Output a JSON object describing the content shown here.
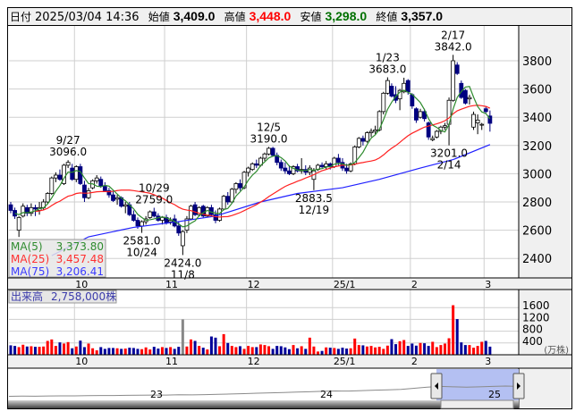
{
  "info": {
    "date_label": "日付",
    "date": "2025/03/04 14:36",
    "open_label": "始値",
    "open": "3,409.0",
    "high_label": "高値",
    "high": "3,448.0",
    "low_label": "安値",
    "low": "3,298.0",
    "close_label": "終値",
    "close": "3,357.0"
  },
  "colors": {
    "up": "#ffffff",
    "down": "#000080",
    "ma5": "#2e8b2e",
    "ma25": "#ff2020",
    "ma75": "#2020ff",
    "vol_up": "#ff0000",
    "vol_down": "#000099",
    "high": "#ff0000",
    "low": "#007000",
    "nav_select": "#b4c0f2"
  },
  "legend": [
    {
      "label": "MA(5)",
      "value": "3,373.80",
      "key": "ma5"
    },
    {
      "label": "MA(25)",
      "value": "3,457.48",
      "key": "ma25"
    },
    {
      "label": "MA(75)",
      "value": "3,206.41",
      "key": "ma75"
    }
  ],
  "volume_label": {
    "title": "出来高",
    "value": "2,758,000株"
  },
  "volume_unit": "(万株)",
  "chart_data": [
    {
      "type": "candlestick",
      "title": "",
      "yticks": [
        2400,
        2600,
        2800,
        3000,
        3200,
        3400,
        3600,
        3800
      ],
      "ylim": [
        2260,
        3900
      ],
      "grid": true,
      "month_ticks": [
        {
          "index": 16,
          "label": "10"
        },
        {
          "index": 38,
          "label": "11"
        },
        {
          "index": 58,
          "label": "12"
        },
        {
          "index": 79,
          "label": "25/1"
        },
        {
          "index": 98,
          "label": "2"
        },
        {
          "index": 116,
          "label": "3"
        }
      ],
      "ohlc": [
        [
          2780,
          2800,
          2720,
          2740
        ],
        [
          2740,
          2760,
          2680,
          2700
        ],
        [
          2600,
          2700,
          2552,
          2690
        ],
        [
          2700,
          2790,
          2690,
          2770
        ],
        [
          2760,
          2780,
          2700,
          2720
        ],
        [
          2720,
          2790,
          2700,
          2760
        ],
        [
          2760,
          2780,
          2700,
          2750
        ],
        [
          2740,
          2800,
          2710,
          2760
        ],
        [
          2760,
          2820,
          2740,
          2800
        ],
        [
          2800,
          2870,
          2790,
          2860
        ],
        [
          2860,
          2980,
          2850,
          2970
        ],
        [
          2970,
          3010,
          2940,
          2990
        ],
        [
          2990,
          3030,
          2950,
          2960
        ],
        [
          2930,
          3070,
          2920,
          3060
        ],
        [
          3060,
          3096,
          3040,
          3080
        ],
        [
          3040,
          3070,
          2950,
          2960
        ],
        [
          2960,
          3060,
          2940,
          3050
        ],
        [
          3050,
          3070,
          2920,
          2930
        ],
        [
          2920,
          2950,
          2800,
          2830
        ],
        [
          2830,
          2900,
          2820,
          2880
        ],
        [
          2900,
          2960,
          2890,
          2950
        ],
        [
          2950,
          2990,
          2930,
          2970
        ],
        [
          2960,
          2980,
          2900,
          2910
        ],
        [
          2910,
          2940,
          2870,
          2880
        ],
        [
          2880,
          2900,
          2830,
          2850
        ],
        [
          2850,
          2880,
          2800,
          2810
        ],
        [
          2820,
          2850,
          2780,
          2830
        ],
        [
          2830,
          2840,
          2760,
          2770
        ],
        [
          2770,
          2800,
          2720,
          2780
        ],
        [
          2780,
          2800,
          2700,
          2710
        ],
        [
          2710,
          2740,
          2660,
          2670
        ],
        [
          2670,
          2690,
          2610,
          2630
        ],
        [
          2630,
          2670,
          2581,
          2660
        ],
        [
          2660,
          2700,
          2640,
          2680
        ],
        [
          2690,
          2740,
          2680,
          2730
        ],
        [
          2730,
          2759,
          2690,
          2700
        ],
        [
          2700,
          2720,
          2660,
          2670
        ],
        [
          2670,
          2700,
          2640,
          2690
        ],
        [
          2690,
          2710,
          2640,
          2650
        ],
        [
          2660,
          2690,
          2640,
          2670
        ],
        [
          2680,
          2710,
          2620,
          2630
        ],
        [
          2630,
          2660,
          2560,
          2580
        ],
        [
          2490,
          2600,
          2424,
          2590
        ],
        [
          2600,
          2700,
          2580,
          2680
        ],
        [
          2680,
          2780,
          2670,
          2770
        ],
        [
          2780,
          2800,
          2700,
          2710
        ],
        [
          2710,
          2770,
          2700,
          2760
        ],
        [
          2770,
          2780,
          2690,
          2700
        ],
        [
          2700,
          2770,
          2690,
          2760
        ],
        [
          2760,
          2780,
          2700,
          2710
        ],
        [
          2710,
          2740,
          2650,
          2670
        ],
        [
          2670,
          2760,
          2660,
          2750
        ],
        [
          2750,
          2850,
          2740,
          2840
        ],
        [
          2840,
          2870,
          2780,
          2800
        ],
        [
          2800,
          2900,
          2790,
          2890
        ],
        [
          2890,
          2940,
          2860,
          2930
        ],
        [
          2930,
          2960,
          2880,
          2900
        ],
        [
          2900,
          3020,
          2890,
          3010
        ],
        [
          3010,
          3050,
          2980,
          3040
        ],
        [
          3030,
          3080,
          3020,
          3070
        ],
        [
          3070,
          3100,
          3040,
          3060
        ],
        [
          3060,
          3120,
          3050,
          3110
        ],
        [
          3110,
          3150,
          3090,
          3140
        ],
        [
          3140,
          3190,
          3130,
          3180
        ],
        [
          3180,
          3190,
          3120,
          3130
        ],
        [
          3130,
          3150,
          3060,
          3080
        ],
        [
          3080,
          3100,
          3020,
          3040
        ],
        [
          3040,
          3080,
          3000,
          3020
        ],
        [
          3020,
          3060,
          2990,
          3000
        ],
        [
          3000,
          3060,
          2990,
          3050
        ],
        [
          3050,
          3070,
          3010,
          3020
        ],
        [
          3020,
          3110,
          3000,
          3030
        ],
        [
          3030,
          3060,
          2990,
          3010
        ],
        [
          3010,
          3060,
          2990,
          3040
        ],
        [
          2960,
          3040,
          2883.5,
          3020
        ],
        [
          3030,
          3070,
          3020,
          3060
        ],
        [
          3060,
          3080,
          3040,
          3050
        ],
        [
          3050,
          3090,
          3030,
          3070
        ],
        [
          3070,
          3080,
          3030,
          3050
        ],
        [
          3050,
          3120,
          3040,
          3110
        ],
        [
          3110,
          3140,
          3060,
          3080
        ],
        [
          3080,
          3110,
          3020,
          3040
        ],
        [
          3040,
          3070,
          3000,
          3020
        ],
        [
          3020,
          3080,
          3010,
          3070
        ],
        [
          3070,
          3200,
          3060,
          3190
        ],
        [
          3190,
          3260,
          3180,
          3250
        ],
        [
          3250,
          3270,
          3200,
          3230
        ],
        [
          3230,
          3300,
          3220,
          3290
        ],
        [
          3290,
          3320,
          3260,
          3300
        ],
        [
          3300,
          3340,
          3280,
          3310
        ],
        [
          3310,
          3450,
          3300,
          3440
        ],
        [
          3440,
          3580,
          3420,
          3570
        ],
        [
          3570,
          3683,
          3560,
          3660
        ],
        [
          3620,
          3640,
          3540,
          3550
        ],
        [
          3560,
          3620,
          3500,
          3520
        ],
        [
          3530,
          3600,
          3450,
          3590
        ],
        [
          3580,
          3680,
          3570,
          3640
        ],
        [
          3660,
          3670,
          3560,
          3580
        ],
        [
          3560,
          3570,
          3460,
          3480
        ],
        [
          3460,
          3470,
          3360,
          3380
        ],
        [
          3400,
          3460,
          3390,
          3440
        ],
        [
          3440,
          3460,
          3370,
          3390
        ],
        [
          3360,
          3370,
          3240,
          3260
        ],
        [
          3240,
          3270,
          3230,
          3250
        ],
        [
          3260,
          3310,
          3250,
          3300
        ],
        [
          3300,
          3340,
          3280,
          3330
        ],
        [
          3330,
          3360,
          3310,
          3340
        ],
        [
          3350,
          3540,
          3201,
          3520
        ],
        [
          3520,
          3842,
          3510,
          3800
        ],
        [
          3770,
          3790,
          3700,
          3710
        ],
        [
          3640,
          3660,
          3530,
          3540
        ],
        [
          3590,
          3600,
          3490,
          3500
        ],
        [
          3530,
          3560,
          3490,
          3540
        ],
        [
          3330,
          3440,
          3310,
          3420
        ],
        [
          3360,
          3420,
          3280,
          3380
        ],
        [
          3350,
          3360,
          3310,
          3350
        ],
        [
          3460,
          3480,
          3430,
          3440
        ],
        [
          3409,
          3448,
          3298,
          3357
        ]
      ],
      "ma75_points": [
        [
          10,
          2420
        ],
        [
          19,
          2553
        ],
        [
          30,
          2620
        ],
        [
          41,
          2661
        ],
        [
          50,
          2700
        ],
        [
          61,
          2800
        ],
        [
          70,
          2860
        ],
        [
          81,
          2901
        ],
        [
          90,
          2960
        ],
        [
          100,
          3040
        ],
        [
          108,
          3100
        ],
        [
          117,
          3206.41
        ]
      ],
      "annotations": [
        {
          "index": 14,
          "pos": "above",
          "date": "9/27",
          "value": "3096.0"
        },
        {
          "index": 35,
          "pos": "above",
          "date": "10/29",
          "value": "2759.0"
        },
        {
          "index": 32,
          "pos": "below",
          "date": "10/24",
          "value": "2581.0"
        },
        {
          "index": 42,
          "pos": "below",
          "date": "11/8",
          "value": "2424.0"
        },
        {
          "index": 63,
          "pos": "above",
          "date": "12/5",
          "value": "3190.0"
        },
        {
          "index": 74,
          "pos": "below",
          "date": "12/19",
          "value": "2883.5"
        },
        {
          "index": 92,
          "pos": "above",
          "date": "1/23",
          "value": "3683.0"
        },
        {
          "index": 108,
          "pos": "above",
          "date": "2/17",
          "value": "3842.0"
        },
        {
          "index": 107,
          "pos": "below",
          "date": "2/14",
          "value": "3201.0"
        }
      ]
    },
    {
      "type": "bar",
      "title": "出来高",
      "unit": "万株",
      "yticks": [
        400,
        800,
        1200,
        1600
      ],
      "values": [
        320,
        300,
        260,
        340,
        280,
        290,
        270,
        270,
        280,
        470,
        520,
        300,
        420,
        380,
        430,
        220,
        280,
        480,
        260,
        380,
        220,
        150,
        260,
        200,
        230,
        230,
        220,
        200,
        210,
        240,
        230,
        200,
        190,
        250,
        180,
        270,
        210,
        260,
        230,
        260,
        200,
        270,
        1200,
        280,
        520,
        470,
        300,
        240,
        180,
        620,
        580,
        290,
        700,
        400,
        300,
        260,
        290,
        200,
        300,
        260,
        260,
        350,
        330,
        290,
        200,
        300,
        290,
        250,
        190,
        330,
        220,
        290,
        200,
        580,
        280,
        110,
        130,
        250,
        240,
        230,
        200,
        240,
        210,
        220,
        550,
        330,
        320,
        280,
        300,
        250,
        270,
        200,
        310,
        530,
        360,
        460,
        500,
        300,
        380,
        310,
        400,
        390,
        300,
        440,
        260,
        330,
        380,
        560,
        1680,
        1210,
        420,
        330,
        330,
        240,
        300,
        440,
        470,
        275.8
      ],
      "gray_index": 42
    }
  ],
  "navigator": {
    "year_labels": [
      "23",
      "24",
      "25"
    ],
    "history": [
      1500,
      1520,
      1510,
      1540,
      1560,
      1550,
      1580,
      1600,
      1590,
      1620,
      1640,
      1650,
      1660,
      1700,
      1690,
      1720,
      1760,
      1800,
      1850,
      1900,
      1950,
      2000,
      2050,
      2100,
      2150,
      2200,
      2180,
      2250,
      2300,
      2350,
      2400,
      2550,
      2700,
      2800,
      2750,
      2700,
      2750,
      2800,
      2850,
      2800
    ]
  }
}
